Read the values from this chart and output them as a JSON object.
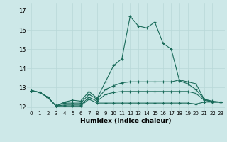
{
  "title": "",
  "xlabel": "Humidex (Indice chaleur)",
  "ylabel": "",
  "bg_color": "#cde8e8",
  "grid_color": "#b8d8d8",
  "line_color": "#1a6b5a",
  "xlim": [
    -0.5,
    23.5
  ],
  "ylim": [
    11.8,
    17.4
  ],
  "yticks": [
    12,
    13,
    14,
    15,
    16,
    17
  ],
  "xticks": [
    0,
    1,
    2,
    3,
    4,
    5,
    6,
    7,
    8,
    9,
    10,
    11,
    12,
    13,
    14,
    15,
    16,
    17,
    18,
    19,
    20,
    21,
    22,
    23
  ],
  "series": [
    [
      12.85,
      12.75,
      12.5,
      12.05,
      12.25,
      12.35,
      12.3,
      12.8,
      12.45,
      13.3,
      14.15,
      14.5,
      16.7,
      16.2,
      16.1,
      16.4,
      15.3,
      15.0,
      13.35,
      13.2,
      12.9,
      12.4,
      12.3,
      12.25
    ],
    [
      12.85,
      12.75,
      12.5,
      12.05,
      12.2,
      12.2,
      12.2,
      12.65,
      12.4,
      12.9,
      13.1,
      13.25,
      13.3,
      13.3,
      13.3,
      13.3,
      13.3,
      13.3,
      13.4,
      13.3,
      13.2,
      12.4,
      12.25,
      12.25
    ],
    [
      12.85,
      12.75,
      12.5,
      12.05,
      12.1,
      12.1,
      12.1,
      12.5,
      12.3,
      12.65,
      12.75,
      12.8,
      12.8,
      12.8,
      12.8,
      12.8,
      12.8,
      12.8,
      12.8,
      12.8,
      12.7,
      12.35,
      12.25,
      12.25
    ],
    [
      12.85,
      12.75,
      12.5,
      12.05,
      12.05,
      12.05,
      12.05,
      12.4,
      12.2,
      12.2,
      12.2,
      12.2,
      12.2,
      12.2,
      12.2,
      12.2,
      12.2,
      12.2,
      12.2,
      12.2,
      12.15,
      12.25,
      12.25,
      12.25
    ]
  ]
}
